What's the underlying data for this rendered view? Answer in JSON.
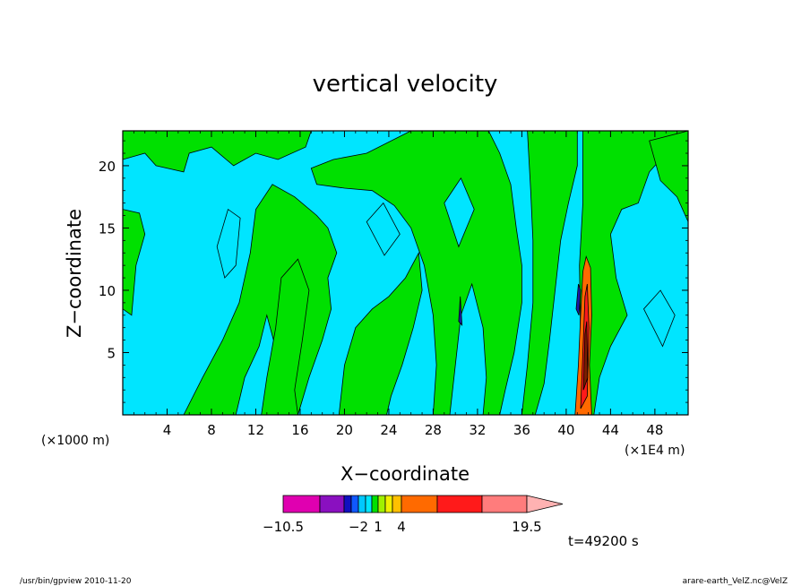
{
  "chart_data": {
    "type": "heatmap",
    "title": "vertical velocity",
    "xlabel": "X−coordinate",
    "ylabel": "Z−coordinate",
    "x_axis_unit_left": "(×1000 m)",
    "x_axis_unit_right": "(×1E4 m)",
    "x_ticks": [
      "4",
      "8",
      "12",
      "16",
      "20",
      "24",
      "28",
      "32",
      "36",
      "40",
      "44",
      "48"
    ],
    "x_tick_values": [
      4,
      8,
      12,
      16,
      20,
      24,
      28,
      32,
      36,
      40,
      44,
      48
    ],
    "y_ticks": [
      "5",
      "10",
      "15",
      "20"
    ],
    "y_tick_values": [
      5,
      10,
      15,
      20
    ],
    "xlim": [
      0,
      51
    ],
    "ylim": [
      0,
      22.8
    ],
    "background_color": "#00e5ff",
    "positive_region_color": "#00e000",
    "strong_updraft_colors": [
      "#ff6a00",
      "#ff1a1a",
      "#7a1e00",
      "#1a1aa8"
    ],
    "colorbar": {
      "colors": [
        "#e000b0",
        "#8a10c0",
        "#1010c0",
        "#1058ff",
        "#00c8ff",
        "#00e5ff",
        "#00e000",
        "#a0f000",
        "#f0f000",
        "#ffc000",
        "#ff6a00",
        "#ff1a1a",
        "#ff7c7c",
        "#ffb2b2"
      ],
      "bounds": [
        -10.5,
        -6.5,
        -4,
        -3,
        -2,
        -1,
        0,
        1,
        2,
        3,
        4,
        8,
        12,
        19.5
      ],
      "tick_labels": [
        "−10.5",
        "−2",
        "1",
        "4",
        "19.5"
      ],
      "tick_values": [
        -10.5,
        -2,
        1,
        4,
        19.5
      ]
    },
    "time_label": "t=49200 s",
    "footer_left": "/usr/bin/gpview   2010-11-20",
    "footer_right": "arare-earth_VelZ.nc@VelZ"
  }
}
